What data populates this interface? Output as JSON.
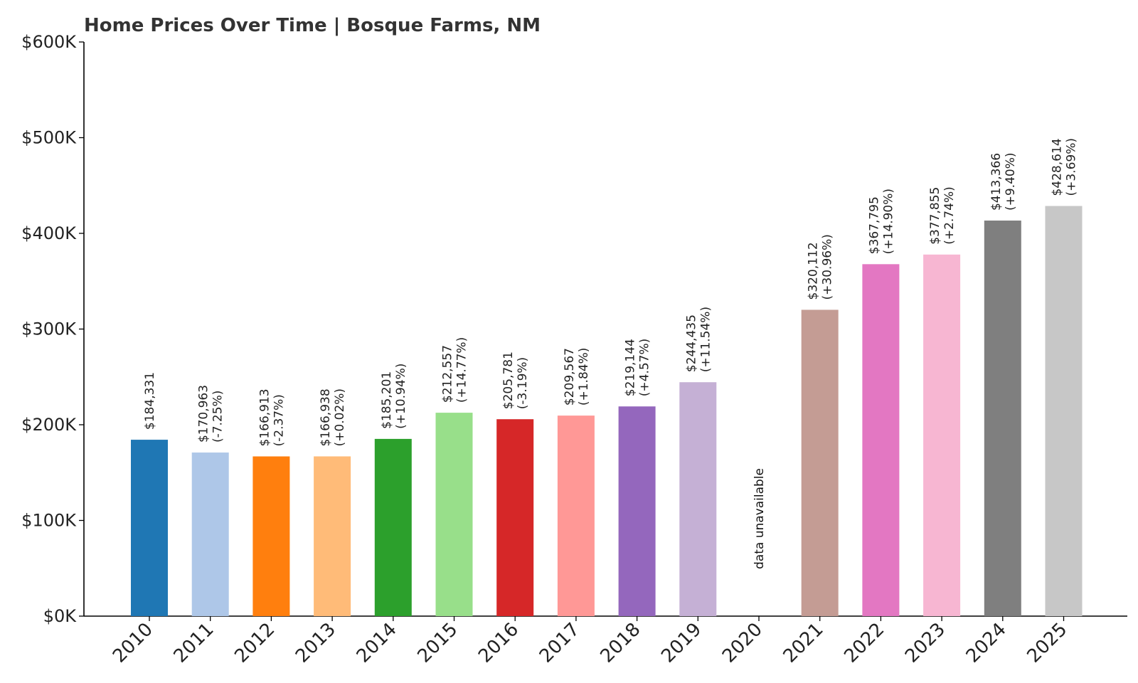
{
  "chart_data": {
    "type": "bar",
    "title": "Home Prices Over Time | Bosque Farms, NM",
    "xlabel": "",
    "ylabel": "",
    "ylim": [
      0,
      600000
    ],
    "y_ticks": [
      {
        "value": 0,
        "label": "$0K"
      },
      {
        "value": 100000,
        "label": "$100K"
      },
      {
        "value": 200000,
        "label": "$200K"
      },
      {
        "value": 300000,
        "label": "$300K"
      },
      {
        "value": 400000,
        "label": "$400K"
      },
      {
        "value": 500000,
        "label": "$500K"
      },
      {
        "value": 600000,
        "label": "$600K"
      }
    ],
    "grid": false,
    "legend": "none",
    "bars": [
      {
        "year": "2010",
        "value": 184331,
        "price_label": "$184,331",
        "change_label": "",
        "color": "#1f77b4"
      },
      {
        "year": "2011",
        "value": 170963,
        "price_label": "$170,963",
        "change_label": "(-7.25%)",
        "color": "#aec7e8"
      },
      {
        "year": "2012",
        "value": 166913,
        "price_label": "$166,913",
        "change_label": "(-2.37%)",
        "color": "#ff7f0e"
      },
      {
        "year": "2013",
        "value": 166938,
        "price_label": "$166,938",
        "change_label": "(+0.02%)",
        "color": "#ffbb78"
      },
      {
        "year": "2014",
        "value": 185201,
        "price_label": "$185,201",
        "change_label": "(+10.94%)",
        "color": "#2ca02c"
      },
      {
        "year": "2015",
        "value": 212557,
        "price_label": "$212,557",
        "change_label": "(+14.77%)",
        "color": "#98df8a"
      },
      {
        "year": "2016",
        "value": 205781,
        "price_label": "$205,781",
        "change_label": "(-3.19%)",
        "color": "#d62728"
      },
      {
        "year": "2017",
        "value": 209567,
        "price_label": "$209,567",
        "change_label": "(+1.84%)",
        "color": "#ff9896"
      },
      {
        "year": "2018",
        "value": 219144,
        "price_label": "$219,144",
        "change_label": "(+4.57%)",
        "color": "#9467bd"
      },
      {
        "year": "2019",
        "value": 244435,
        "price_label": "$244,435",
        "change_label": "(+11.54%)",
        "color": "#c5b0d5"
      },
      {
        "year": "2020",
        "value": null,
        "price_label": "data unavailable",
        "change_label": "",
        "color": "#8c564b"
      },
      {
        "year": "2021",
        "value": 320112,
        "price_label": "$320,112",
        "change_label": "(+30.96%)",
        "color": "#c49c94"
      },
      {
        "year": "2022",
        "value": 367795,
        "price_label": "$367,795",
        "change_label": "(+14.90%)",
        "color": "#e377c2"
      },
      {
        "year": "2023",
        "value": 377855,
        "price_label": "$377,855",
        "change_label": "(+2.74%)",
        "color": "#f7b6d2"
      },
      {
        "year": "2024",
        "value": 413366,
        "price_label": "$413,366",
        "change_label": "(+9.40%)",
        "color": "#7f7f7f"
      },
      {
        "year": "2025",
        "value": 428614,
        "price_label": "$428,614",
        "change_label": "(+3.69%)",
        "color": "#c7c7c7"
      }
    ]
  }
}
